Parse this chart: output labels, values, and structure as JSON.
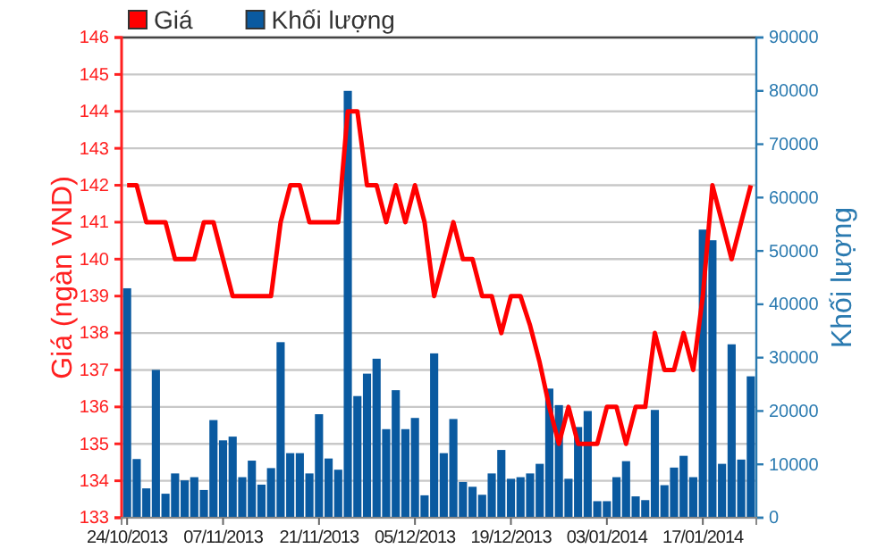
{
  "chart_data": {
    "type": "bar",
    "legend": "top left",
    "grid": "y",
    "ylabel": "Giá (ngàn VND)",
    "y2label": "Khối lượng",
    "categories": [
      "24/10/2013",
      null,
      null,
      null,
      null,
      null,
      null,
      null,
      null,
      null,
      "07/11/2013",
      null,
      null,
      null,
      null,
      null,
      null,
      null,
      null,
      null,
      "21/11/2013",
      null,
      null,
      null,
      null,
      null,
      null,
      null,
      null,
      null,
      "05/12/2013",
      null,
      null,
      null,
      null,
      null,
      null,
      null,
      null,
      null,
      "19/12/2013",
      null,
      null,
      null,
      null,
      null,
      null,
      null,
      null,
      null,
      "03/01/2014",
      null,
      null,
      null,
      null,
      null,
      null,
      null,
      null,
      null,
      "17/01/2014",
      null,
      null,
      null,
      null,
      null
    ],
    "ylim": [
      133,
      146
    ],
    "yticks": [
      133,
      134,
      135,
      136,
      137,
      138,
      139,
      140,
      141,
      142,
      143,
      144,
      145,
      146
    ],
    "y2lim": [
      0,
      90000
    ],
    "y2ticks": [
      0,
      10000,
      20000,
      30000,
      40000,
      50000,
      60000,
      70000,
      80000,
      90000
    ],
    "series": [
      {
        "name": "Giá",
        "type": "line",
        "color": "#ff0000",
        "values": [
          142,
          142,
          141,
          141,
          141,
          140,
          140,
          140,
          141,
          141,
          140,
          139,
          139,
          139,
          139,
          139,
          141,
          142,
          142,
          141,
          141,
          141,
          141,
          144,
          144,
          142,
          142,
          141,
          142,
          141,
          142,
          141,
          139,
          140,
          141,
          140,
          140,
          139,
          139,
          138,
          139,
          139,
          138.2,
          137.2,
          136,
          135,
          136,
          135,
          135,
          135,
          136,
          136,
          135,
          136,
          136,
          138,
          137,
          137,
          138,
          137,
          139,
          142,
          141,
          140,
          141,
          142
        ]
      },
      {
        "name": "Khối lượng",
        "axis": "y2",
        "color": "#0a5aa0",
        "values": [
          43000,
          11000,
          5500,
          27700,
          4500,
          8300,
          7000,
          7600,
          5200,
          18300,
          14500,
          15200,
          7600,
          10700,
          6200,
          9300,
          32900,
          12100,
          12100,
          8300,
          19400,
          11100,
          9000,
          80000,
          22800,
          27000,
          29800,
          16600,
          23900,
          16600,
          18700,
          4200,
          30800,
          12100,
          18500,
          6700,
          5800,
          4300,
          8300,
          12700,
          7300,
          7600,
          8300,
          10100,
          24200,
          21100,
          7300,
          17000,
          20000,
          3100,
          3100,
          7600,
          10600,
          4000,
          3300,
          20200,
          6100,
          9400,
          11600,
          7600,
          54000,
          52000,
          10100,
          32500,
          10900,
          26500
        ]
      }
    ]
  }
}
